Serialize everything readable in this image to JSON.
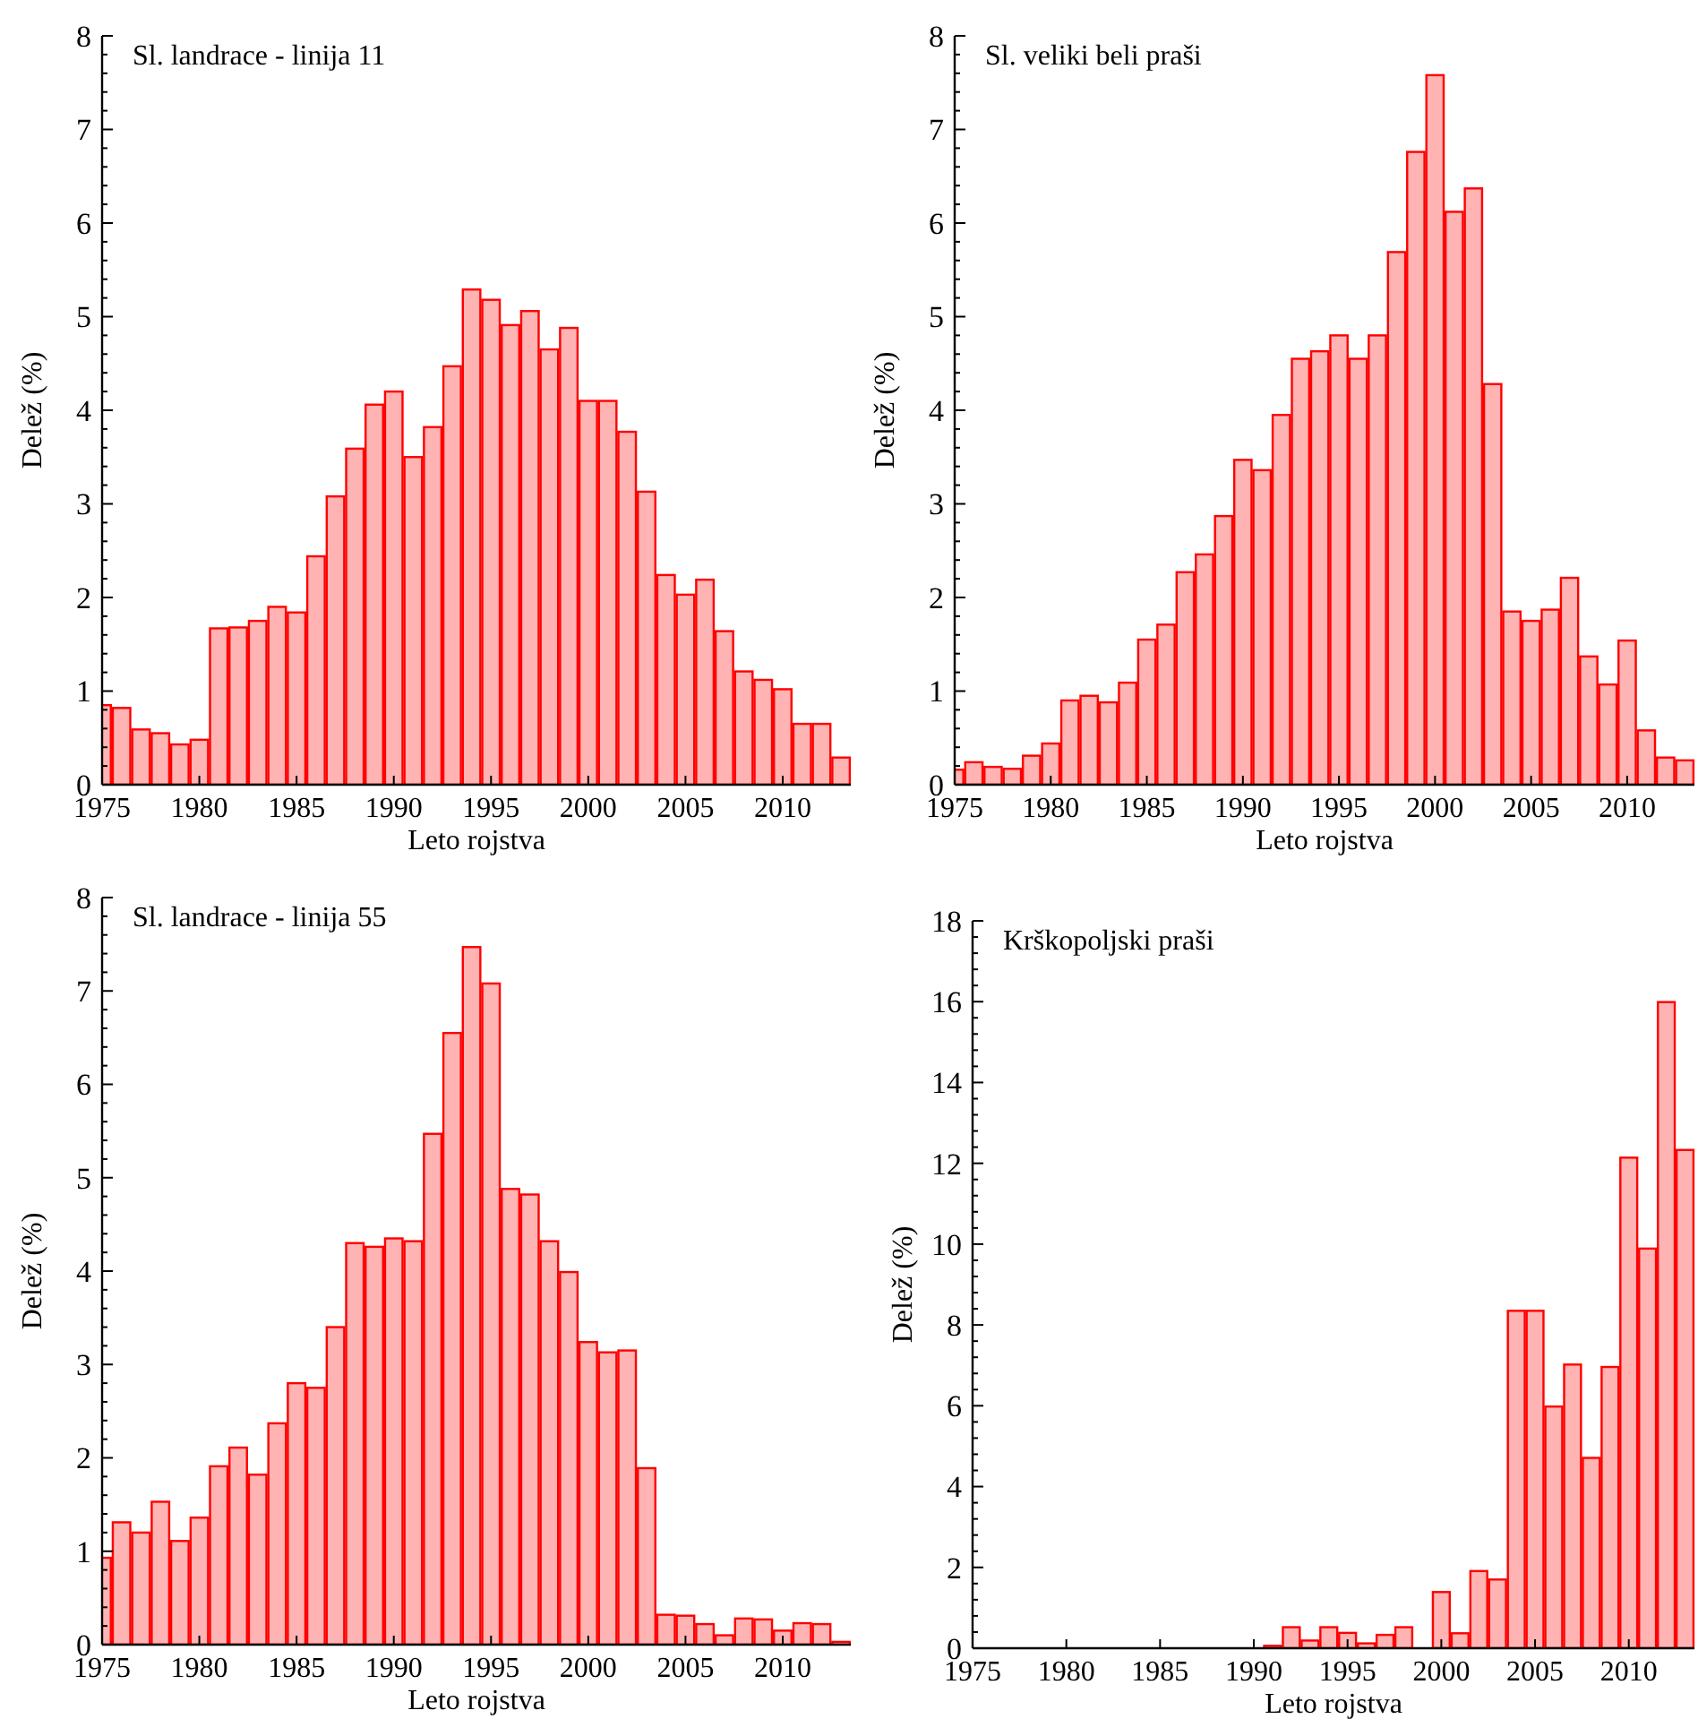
{
  "chart_data": [
    {
      "type": "bar",
      "title": "Sl. landrace - linija 11",
      "xlabel": "Leto rojstva",
      "ylabel": "Delež (%)",
      "x": [
        1975,
        1976,
        1977,
        1978,
        1979,
        1980,
        1981,
        1982,
        1983,
        1984,
        1985,
        1986,
        1987,
        1988,
        1989,
        1990,
        1991,
        1992,
        1993,
        1994,
        1995,
        1996,
        1997,
        1998,
        1999,
        2000,
        2001,
        2002,
        2003,
        2004,
        2005,
        2006,
        2007,
        2008,
        2009,
        2010,
        2011,
        2012,
        2013
      ],
      "series": [
        {
          "color": "#ffb3b3",
          "values": [
            0.85,
            0.82,
            0.59,
            0.55,
            0.43,
            0.48,
            1.67,
            1.68,
            1.75,
            1.9,
            1.84,
            2.44,
            3.08,
            3.59,
            4.06,
            4.2,
            3.5,
            3.82,
            4.47,
            5.29,
            5.18,
            4.91,
            5.06,
            4.65,
            4.88,
            4.1,
            4.1,
            3.77,
            3.13,
            2.24,
            2.03,
            2.19,
            1.64,
            1.21,
            1.12,
            1.02,
            0.65,
            0.65,
            0.29
          ]
        }
      ],
      "xlim": [
        1975,
        2013.5
      ],
      "xticks": [
        1975,
        1980,
        1985,
        1990,
        1995,
        2000,
        2005,
        2010
      ],
      "ylim": [
        0,
        8
      ],
      "yticks": [
        0,
        {
          "value": 0.2,
          "label": null
        },
        {
          "value": 0.4,
          "label": null
        },
        {
          "value": 0.6,
          "label": null
        },
        {
          "value": 0.8,
          "label": null
        },
        1,
        {
          "value": 1.2,
          "label": null
        },
        {
          "value": 1.4,
          "label": null
        },
        {
          "value": 1.6,
          "label": null
        },
        {
          "value": 1.8,
          "label": null
        },
        2,
        {
          "value": 2.2,
          "label": null
        },
        {
          "value": 2.4,
          "label": null
        },
        {
          "value": 2.6,
          "label": null
        },
        {
          "value": 2.8,
          "label": null
        },
        3,
        {
          "value": 3.2,
          "label": null
        },
        {
          "value": 3.4,
          "label": null
        },
        {
          "value": 3.6,
          "label": null
        },
        {
          "value": 3.8,
          "label": null
        },
        4,
        {
          "value": 4.2,
          "label": null
        },
        {
          "value": 4.4,
          "label": null
        },
        {
          "value": 4.6,
          "label": null
        },
        {
          "value": 4.8,
          "label": null
        },
        5,
        {
          "value": 5.2,
          "label": null
        },
        {
          "value": 5.4,
          "label": null
        },
        {
          "value": 5.6,
          "label": null
        },
        {
          "value": 5.8,
          "label": null
        },
        6,
        {
          "value": 6.2,
          "label": null
        },
        {
          "value": 6.4,
          "label": null
        },
        {
          "value": 6.6,
          "label": null
        },
        {
          "value": 6.8,
          "label": null
        },
        7,
        {
          "value": 7.2,
          "label": null
        },
        {
          "value": 7.4,
          "label": null
        },
        {
          "value": 7.6,
          "label": null
        },
        {
          "value": 7.8,
          "label": null
        },
        8
      ]
    },
    {
      "type": "bar",
      "title": "Sl. veliki beli praši",
      "xlabel": "Leto rojstva",
      "ylabel": "Delež (%)",
      "x": [
        1975,
        1976,
        1977,
        1978,
        1979,
        1980,
        1981,
        1982,
        1983,
        1984,
        1985,
        1986,
        1987,
        1988,
        1989,
        1990,
        1991,
        1992,
        1993,
        1994,
        1995,
        1996,
        1997,
        1998,
        1999,
        2000,
        2001,
        2002,
        2003,
        2004,
        2005,
        2006,
        2007,
        2008,
        2009,
        2010,
        2011,
        2012,
        2013
      ],
      "series": [
        {
          "color": "#ffb3b3",
          "values": [
            0.16,
            0.24,
            0.19,
            0.17,
            0.31,
            0.44,
            0.9,
            0.95,
            0.88,
            1.09,
            1.55,
            1.71,
            2.27,
            2.46,
            2.87,
            3.47,
            3.36,
            3.95,
            4.55,
            4.63,
            4.8,
            4.55,
            4.8,
            5.69,
            6.76,
            7.58,
            6.12,
            6.37,
            4.28,
            1.85,
            1.75,
            1.87,
            2.21,
            1.37,
            1.07,
            1.54,
            0.58,
            0.29,
            0.26
          ]
        }
      ],
      "xlim": [
        1975,
        2013.5
      ],
      "xticks": [
        1975,
        1980,
        1985,
        1990,
        1995,
        2000,
        2005,
        2010
      ],
      "ylim": [
        0,
        8
      ],
      "yticks": [
        0,
        {
          "value": 0.2,
          "label": null
        },
        {
          "value": 0.4,
          "label": null
        },
        {
          "value": 0.6,
          "label": null
        },
        {
          "value": 0.8,
          "label": null
        },
        1,
        {
          "value": 1.2,
          "label": null
        },
        {
          "value": 1.4,
          "label": null
        },
        {
          "value": 1.6,
          "label": null
        },
        {
          "value": 1.8,
          "label": null
        },
        2,
        {
          "value": 2.2,
          "label": null
        },
        {
          "value": 2.4,
          "label": null
        },
        {
          "value": 2.6,
          "label": null
        },
        {
          "value": 2.8,
          "label": null
        },
        3,
        {
          "value": 3.2,
          "label": null
        },
        {
          "value": 3.4,
          "label": null
        },
        {
          "value": 3.6,
          "label": null
        },
        {
          "value": 3.8,
          "label": null
        },
        4,
        {
          "value": 4.2,
          "label": null
        },
        {
          "value": 4.4,
          "label": null
        },
        {
          "value": 4.6,
          "label": null
        },
        {
          "value": 4.8,
          "label": null
        },
        5,
        {
          "value": 5.2,
          "label": null
        },
        {
          "value": 5.4,
          "label": null
        },
        {
          "value": 5.6,
          "label": null
        },
        {
          "value": 5.8,
          "label": null
        },
        6,
        {
          "value": 6.2,
          "label": null
        },
        {
          "value": 6.4,
          "label": null
        },
        {
          "value": 6.6,
          "label": null
        },
        {
          "value": 6.8,
          "label": null
        },
        7,
        {
          "value": 7.2,
          "label": null
        },
        {
          "value": 7.4,
          "label": null
        },
        {
          "value": 7.6,
          "label": null
        },
        {
          "value": 7.8,
          "label": null
        },
        8
      ]
    },
    {
      "type": "bar",
      "title": "Sl. landrace - linija 55",
      "xlabel": "Leto rojstva",
      "ylabel": "Delež (%)",
      "x": [
        1975,
        1976,
        1977,
        1978,
        1979,
        1980,
        1981,
        1982,
        1983,
        1984,
        1985,
        1986,
        1987,
        1988,
        1989,
        1990,
        1991,
        1992,
        1993,
        1994,
        1995,
        1996,
        1997,
        1998,
        1999,
        2000,
        2001,
        2002,
        2003,
        2004,
        2005,
        2006,
        2007,
        2008,
        2009,
        2010,
        2011,
        2012,
        2013
      ],
      "series": [
        {
          "color": "#ffb3b3",
          "values": [
            0.93,
            1.31,
            1.2,
            1.53,
            1.11,
            1.36,
            1.91,
            2.11,
            1.82,
            2.37,
            2.8,
            2.75,
            3.4,
            4.3,
            4.26,
            4.35,
            4.32,
            5.47,
            6.55,
            7.47,
            7.08,
            4.88,
            4.82,
            4.32,
            3.99,
            3.24,
            3.13,
            3.15,
            1.89,
            0.32,
            0.31,
            0.22,
            0.1,
            0.28,
            0.27,
            0.15,
            0.23,
            0.22,
            0.03
          ]
        }
      ],
      "xlim": [
        1975,
        2013.5
      ],
      "xticks": [
        1975,
        1980,
        1985,
        1990,
        1995,
        2000,
        2005,
        2010
      ],
      "ylim": [
        0,
        8
      ],
      "yticks": [
        0,
        {
          "value": 0.2,
          "label": null
        },
        {
          "value": 0.4,
          "label": null
        },
        {
          "value": 0.6,
          "label": null
        },
        {
          "value": 0.8,
          "label": null
        },
        1,
        {
          "value": 1.2,
          "label": null
        },
        {
          "value": 1.4,
          "label": null
        },
        {
          "value": 1.6,
          "label": null
        },
        {
          "value": 1.8,
          "label": null
        },
        2,
        {
          "value": 2.2,
          "label": null
        },
        {
          "value": 2.4,
          "label": null
        },
        {
          "value": 2.6,
          "label": null
        },
        {
          "value": 2.8,
          "label": null
        },
        3,
        {
          "value": 3.2,
          "label": null
        },
        {
          "value": 3.4,
          "label": null
        },
        {
          "value": 3.6,
          "label": null
        },
        {
          "value": 3.8,
          "label": null
        },
        4,
        {
          "value": 4.2,
          "label": null
        },
        {
          "value": 4.4,
          "label": null
        },
        {
          "value": 4.6,
          "label": null
        },
        {
          "value": 4.8,
          "label": null
        },
        5,
        {
          "value": 5.2,
          "label": null
        },
        {
          "value": 5.4,
          "label": null
        },
        {
          "value": 5.6,
          "label": null
        },
        {
          "value": 5.8,
          "label": null
        },
        6,
        {
          "value": 6.2,
          "label": null
        },
        {
          "value": 6.4,
          "label": null
        },
        {
          "value": 6.6,
          "label": null
        },
        {
          "value": 6.8,
          "label": null
        },
        7,
        {
          "value": 7.2,
          "label": null
        },
        {
          "value": 7.4,
          "label": null
        },
        {
          "value": 7.6,
          "label": null
        },
        {
          "value": 7.8,
          "label": null
        },
        8
      ]
    },
    {
      "type": "bar",
      "title": "Krškopoljski praši",
      "xlabel": "Leto rojstva",
      "ylabel": "Delež (%)",
      "x": [
        1975,
        1976,
        1977,
        1978,
        1979,
        1980,
        1981,
        1982,
        1983,
        1984,
        1985,
        1986,
        1987,
        1988,
        1989,
        1990,
        1991,
        1992,
        1993,
        1994,
        1995,
        1996,
        1997,
        1998,
        1999,
        2000,
        2001,
        2002,
        2003,
        2004,
        2005,
        2006,
        2007,
        2008,
        2009,
        2010,
        2011,
        2012,
        2013
      ],
      "series": [
        {
          "color": "#ffb3b3",
          "values": [
            0,
            0,
            0,
            0,
            0,
            0,
            0,
            0,
            0,
            0,
            0,
            0,
            0,
            0,
            0,
            0,
            0.06,
            0.52,
            0.19,
            0.52,
            0.38,
            0.12,
            0.33,
            0.52,
            0,
            1.39,
            0.37,
            1.91,
            1.7,
            8.35,
            8.35,
            5.98,
            7.02,
            4.71,
            6.96,
            12.14,
            9.89,
            15.99,
            12.33
          ]
        }
      ],
      "xlim": [
        1975,
        2013.5
      ],
      "xticks": [
        1975,
        1980,
        1985,
        1990,
        1995,
        2000,
        2005,
        2010
      ],
      "ylim": [
        0,
        18
      ],
      "yticks": [
        0,
        {
          "value": 0.4,
          "label": null
        },
        {
          "value": 0.8,
          "label": null
        },
        {
          "value": 1.2,
          "label": null
        },
        {
          "value": 1.6,
          "label": null
        },
        2,
        {
          "value": 2.4,
          "label": null
        },
        {
          "value": 2.8,
          "label": null
        },
        {
          "value": 3.2,
          "label": null
        },
        {
          "value": 3.6,
          "label": null
        },
        4,
        {
          "value": 4.4,
          "label": null
        },
        {
          "value": 4.8,
          "label": null
        },
        {
          "value": 5.2,
          "label": null
        },
        {
          "value": 5.6,
          "label": null
        },
        6,
        {
          "value": 6.4,
          "label": null
        },
        {
          "value": 6.8,
          "label": null
        },
        {
          "value": 7.2,
          "label": null
        },
        {
          "value": 7.6,
          "label": null
        },
        8,
        {
          "value": 8.4,
          "label": null
        },
        {
          "value": 8.8,
          "label": null
        },
        {
          "value": 9.2,
          "label": null
        },
        {
          "value": 9.6,
          "label": null
        },
        10,
        {
          "value": 10.4,
          "label": null
        },
        {
          "value": 10.8,
          "label": null
        },
        {
          "value": 11.2,
          "label": null
        },
        {
          "value": 11.6,
          "label": null
        },
        12,
        {
          "value": 12.4,
          "label": null
        },
        {
          "value": 12.8,
          "label": null
        },
        {
          "value": 13.2,
          "label": null
        },
        {
          "value": 13.6,
          "label": null
        },
        14,
        {
          "value": 14.4,
          "label": null
        },
        {
          "value": 14.8,
          "label": null
        },
        {
          "value": 15.2,
          "label": null
        },
        {
          "value": 15.6,
          "label": null
        },
        16,
        {
          "value": 16.4,
          "label": null
        },
        {
          "value": 16.8,
          "label": null
        },
        {
          "value": 17.2,
          "label": null
        },
        {
          "value": 17.6,
          "label": null
        },
        18
      ]
    }
  ]
}
